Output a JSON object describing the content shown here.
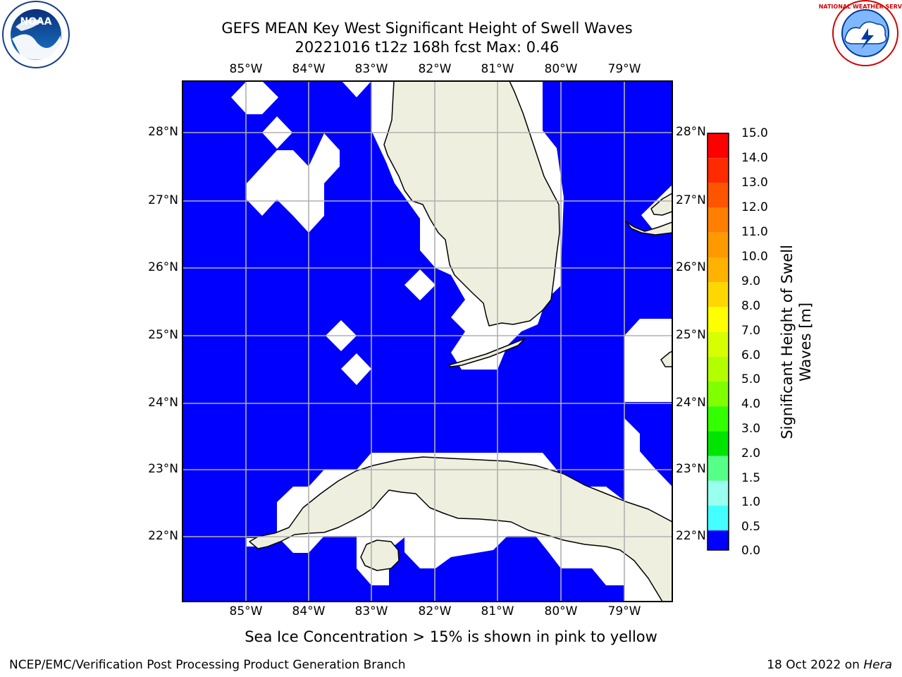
{
  "header": {
    "title_line1": "GEFS MEAN Key West Significant Height of Swell Waves",
    "title_line2": "20221016 t12z 168h fcst   Max: 0.46"
  },
  "logos": {
    "left": {
      "name": "noaa-logo",
      "text": "NOAA"
    },
    "right": {
      "name": "national-weather-service-logo",
      "text": "NATIONAL WEATHER SERVICE"
    }
  },
  "map": {
    "lon_labels": [
      "85°W",
      "84°W",
      "83°W",
      "82°W",
      "81°W",
      "80°W",
      "79°W"
    ],
    "lat_labels": [
      "28°N",
      "27°N",
      "26°N",
      "25°N",
      "24°N",
      "23°N",
      "22°N"
    ],
    "ocean_color": "#0000ff",
    "land_color": "#efefdf",
    "no_data_color": "#ffffff",
    "grid_color": "#b0b0b0"
  },
  "colorbar": {
    "label": "Significant Height of Swell\nWaves [m]",
    "ticks": [
      "15.0",
      "14.0",
      "13.0",
      "12.0",
      "11.0",
      "10.0",
      "9.0",
      "8.0",
      "7.0",
      "6.0",
      "5.0",
      "4.0",
      "3.0",
      "2.0",
      "1.5",
      "1.0",
      "0.5",
      "0.0"
    ],
    "colors_top_to_bottom": [
      "#ff0000",
      "#ff2a00",
      "#ff5500",
      "#ff7f00",
      "#ff9900",
      "#ffb300",
      "#ffd700",
      "#ffff00",
      "#d7ff00",
      "#b3ff00",
      "#7fff00",
      "#33ff00",
      "#00e500",
      "#55ff88",
      "#99ffee",
      "#44ffff",
      "#00ffff",
      "#0080ff",
      "#0000ff"
    ]
  },
  "footer": {
    "note": "Sea Ice Concentration > 15% is shown in pink to yellow",
    "credit": "NCEP/EMC/Verification Post Processing Product Generation Branch",
    "date": "18 Oct 2022",
    "on_word": "on",
    "machine": "Hera"
  }
}
